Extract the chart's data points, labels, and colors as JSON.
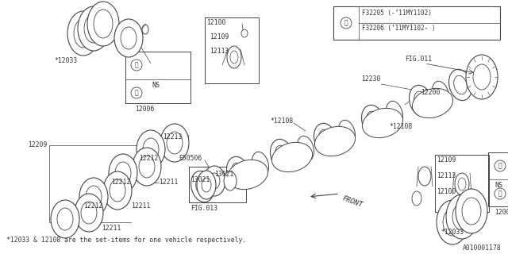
{
  "bg_color": "#ffffff",
  "figsize": [
    6.4,
    3.2
  ],
  "dpi": 100,
  "footer_text": "*12033 & 12108 are the set-items for one vehicle respectively.",
  "part_id": "A010001178",
  "legend_line1": "F32205 (-’11MY1102)",
  "legend_line2": "F32206 (’11MY1102- )"
}
